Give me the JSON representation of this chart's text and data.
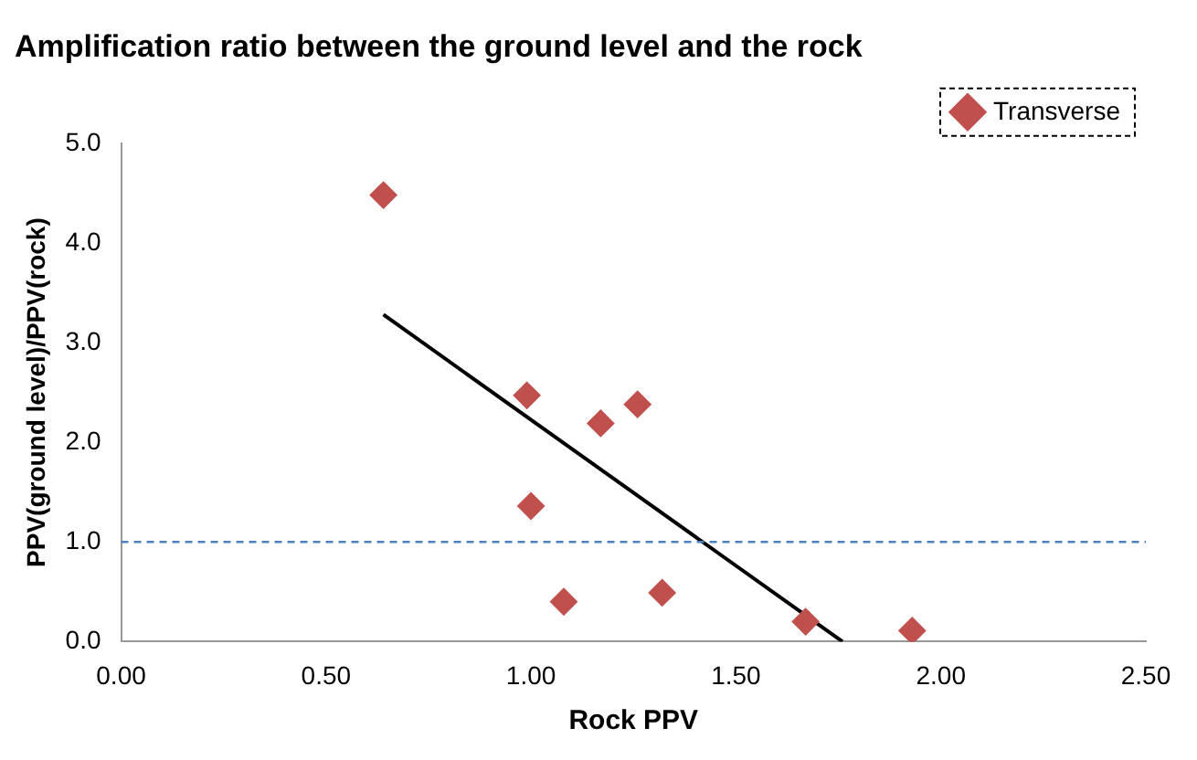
{
  "chart_data": {
    "type": "scatter",
    "title": "Amplification ratio between the ground level and the rock",
    "xlabel": "Rock PPV",
    "ylabel": "PPV(ground level)/PPV(rock)",
    "series": [
      {
        "name": "Transverse",
        "color": "#c0504d",
        "marker": "diamond",
        "x": [
          0.64,
          0.99,
          1.0,
          1.08,
          1.17,
          1.26,
          1.32,
          1.67,
          1.93
        ],
        "values": [
          4.48,
          2.47,
          1.36,
          0.4,
          2.19,
          2.38,
          0.49,
          0.2,
          0.11
        ]
      },
      {
        "type": "line",
        "color": "#000000",
        "marker": "none",
        "x": [
          0.64,
          1.76
        ],
        "values": [
          3.28,
          0
        ]
      }
    ],
    "xlim": [
      0,
      2.5
    ],
    "xticks": [
      {
        "value": 0,
        "label": "0.00"
      },
      {
        "value": 0.5,
        "label": "0.50"
      },
      {
        "value": 1,
        "label": "1.00"
      },
      {
        "value": 1.5,
        "label": "1.50"
      },
      {
        "value": 2,
        "label": "2.00"
      },
      {
        "value": 2.5,
        "label": "2.50"
      }
    ],
    "ylim": [
      0,
      5
    ],
    "yticks": [
      {
        "value": 0,
        "label": "0.0"
      },
      {
        "value": 1,
        "label": "1.0"
      },
      {
        "value": 2,
        "label": "2.0"
      },
      {
        "value": 3,
        "label": "3.0"
      },
      {
        "value": 4,
        "label": "4.0"
      },
      {
        "value": 5,
        "label": "5.0"
      }
    ],
    "ref_lines": [
      {
        "axis": "y",
        "value": 1,
        "color": "#4f81bd",
        "line_style": "dashed"
      }
    ],
    "grid": false,
    "legend": "top right"
  }
}
